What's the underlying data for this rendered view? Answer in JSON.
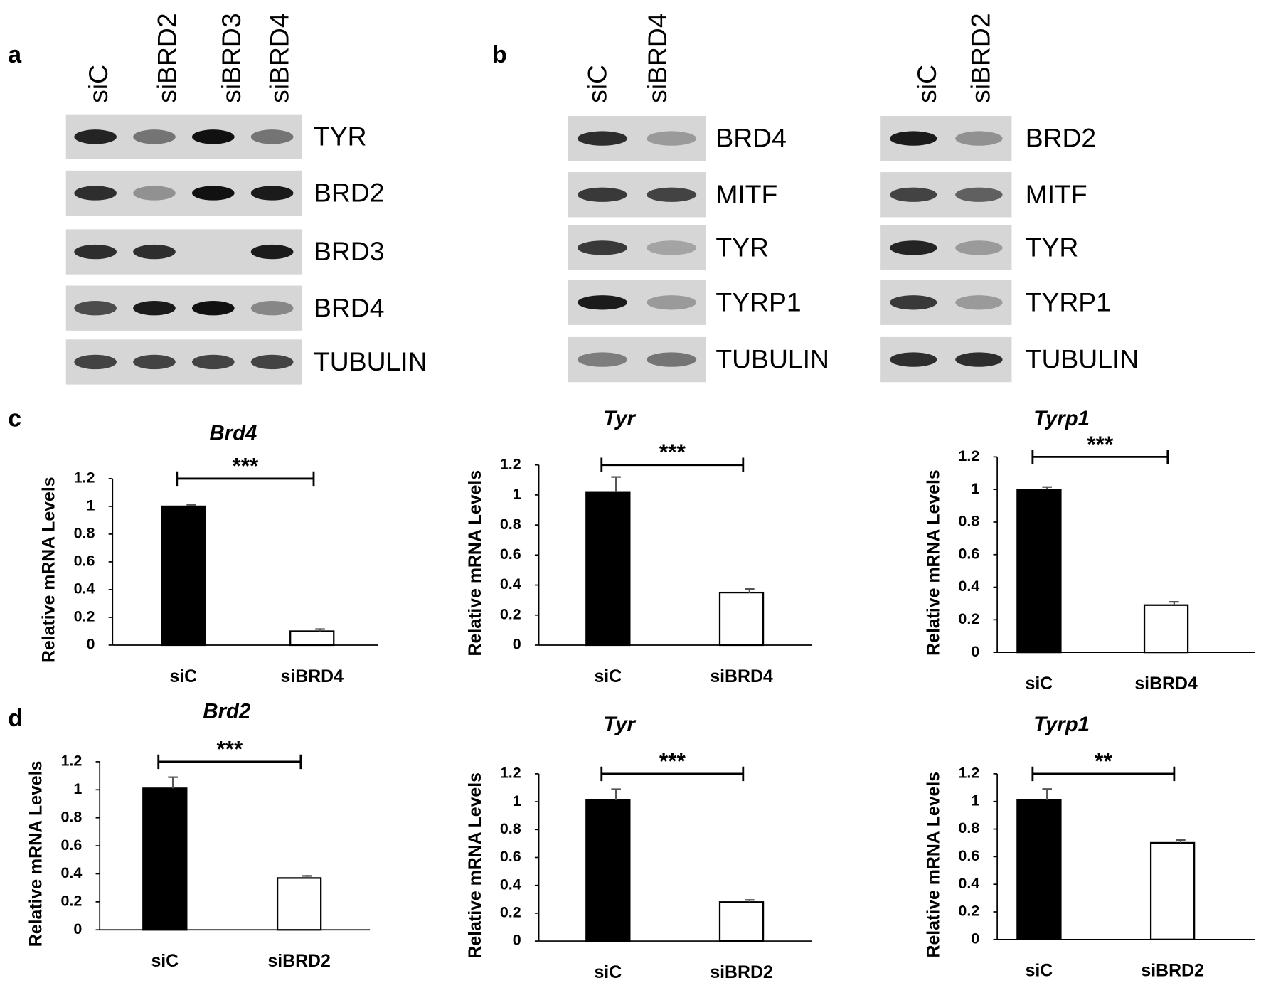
{
  "panels": [
    "a",
    "b",
    "c",
    "d"
  ],
  "blots": [
    {
      "lanes": [
        "siC",
        "siBRD2",
        "siBRD3",
        "siBRD4"
      ],
      "rows": [
        "TYR",
        "BRD2",
        "BRD3",
        "BRD4",
        "TUBULIN"
      ]
    },
    {
      "lanes": [
        "siC",
        "siBRD4"
      ],
      "rows": [
        "BRD4",
        "MITF",
        "TYR",
        "TYRP1",
        "TUBULIN"
      ]
    },
    {
      "lanes": [
        "siC",
        "siBRD2"
      ],
      "rows": [
        "BRD2",
        "MITF",
        "TYR",
        "TYRP1",
        "TUBULIN"
      ]
    }
  ],
  "chart_data": [
    {
      "type": "bar",
      "title": "Brd4",
      "y_label": "Relative mRNA Levels",
      "categories": [
        "siC",
        "siBRD4"
      ],
      "values": [
        1.0,
        0.1
      ],
      "errors": [
        0.01,
        0.015
      ],
      "colors": [
        "#000000",
        "#ffffff"
      ],
      "ylim": [
        0,
        1.2
      ],
      "yticks": [
        0,
        0.2,
        0.4,
        0.6,
        0.8,
        1,
        1.2
      ],
      "significance": "***"
    },
    {
      "type": "bar",
      "title": "Tyr",
      "y_label": "Relative mRNA Levels",
      "categories": [
        "siC",
        "siBRD4"
      ],
      "values": [
        1.02,
        0.35
      ],
      "errors": [
        0.1,
        0.025
      ],
      "colors": [
        "#000000",
        "#ffffff"
      ],
      "ylim": [
        0,
        1.2
      ],
      "yticks": [
        0,
        0.2,
        0.4,
        0.6,
        0.8,
        1,
        1.2
      ],
      "significance": "***"
    },
    {
      "type": "bar",
      "title": "Tyrp1",
      "y_label": "Relative mRNA Levels",
      "categories": [
        "siC",
        "siBRD4"
      ],
      "values": [
        1.0,
        0.29
      ],
      "errors": [
        0.015,
        0.02
      ],
      "colors": [
        "#000000",
        "#ffffff"
      ],
      "ylim": [
        0,
        1.2
      ],
      "yticks": [
        0,
        0.2,
        0.4,
        0.6,
        0.8,
        1,
        1.2
      ],
      "significance": "***"
    },
    {
      "type": "bar",
      "title": "Brd2",
      "y_label": "Relative mRNA Levels",
      "categories": [
        "siC",
        "siBRD2"
      ],
      "values": [
        1.01,
        0.37
      ],
      "errors": [
        0.08,
        0.015
      ],
      "colors": [
        "#000000",
        "#ffffff"
      ],
      "ylim": [
        0,
        1.2
      ],
      "yticks": [
        0,
        0.2,
        0.4,
        0.6,
        0.8,
        1,
        1.2
      ],
      "significance": "***"
    },
    {
      "type": "bar",
      "title": "Tyr",
      "y_label": "Relative mRNA Levels",
      "categories": [
        "siC",
        "siBRD2"
      ],
      "values": [
        1.01,
        0.28
      ],
      "errors": [
        0.08,
        0.015
      ],
      "colors": [
        "#000000",
        "#ffffff"
      ],
      "ylim": [
        0,
        1.2
      ],
      "yticks": [
        0,
        0.2,
        0.4,
        0.6,
        0.8,
        1,
        1.2
      ],
      "significance": "***"
    },
    {
      "type": "bar",
      "title": "Tyrp1",
      "y_label": "Relative mRNA Levels",
      "categories": [
        "siC",
        "siBRD2"
      ],
      "values": [
        1.01,
        0.7
      ],
      "errors": [
        0.08,
        0.02
      ],
      "colors": [
        "#000000",
        "#ffffff"
      ],
      "ylim": [
        0,
        1.2
      ],
      "yticks": [
        0,
        0.2,
        0.4,
        0.6,
        0.8,
        1,
        1.2
      ],
      "significance": "**"
    }
  ]
}
